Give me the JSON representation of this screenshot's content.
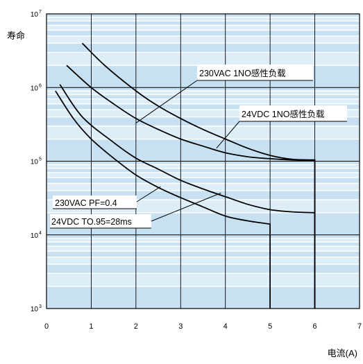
{
  "chart_data": {
    "type": "line",
    "ylabel": "寿命",
    "xlabel": "电流(A)",
    "x_ticks": [
      "0",
      "1",
      "2",
      "3",
      "4",
      "5",
      "6",
      "7"
    ],
    "y_ticks": [
      {
        "base": "10",
        "exp": "3"
      },
      {
        "base": "10",
        "exp": "4"
      },
      {
        "base": "10",
        "exp": "5"
      },
      {
        "base": "10",
        "exp": "6"
      },
      {
        "base": "10",
        "exp": "7"
      }
    ],
    "xlim": [
      0,
      7
    ],
    "ylim": [
      1000,
      10000000
    ],
    "y_scale": "log",
    "grid": true,
    "colors": {
      "background": "#ddeef8",
      "stripe": "#c7e1f2",
      "grid": "#ffffff",
      "line": "#000000"
    },
    "series": [
      {
        "name": "230VAC 1NO感性负载",
        "points": [
          [
            0.8,
            4000000
          ],
          [
            1.3,
            2000000
          ],
          [
            2.0,
            900000
          ],
          [
            2.5,
            560000
          ],
          [
            3.0,
            380000
          ],
          [
            3.5,
            270000
          ],
          [
            4.0,
            200000
          ],
          [
            4.5,
            150000
          ],
          [
            5.0,
            120000
          ],
          [
            5.5,
            106000
          ],
          [
            6.0,
            104000
          ]
        ],
        "cutoff": {
          "x": 6.0,
          "y": 1000
        }
      },
      {
        "name": "24VDC 1NO感性负载",
        "points": [
          [
            0.45,
            2000000
          ],
          [
            1.0,
            1000000
          ],
          [
            1.5,
            600000
          ],
          [
            2.0,
            380000
          ],
          [
            2.5,
            270000
          ],
          [
            3.0,
            200000
          ],
          [
            3.5,
            160000
          ],
          [
            4.0,
            130000
          ],
          [
            4.5,
            115000
          ],
          [
            5.0,
            108000
          ],
          [
            5.5,
            104000
          ],
          [
            6.0,
            102000
          ]
        ],
        "cutoff": {
          "x": 6.0,
          "y": 1000
        }
      },
      {
        "name": "230VAC PF=0.4",
        "points": [
          [
            0.3,
            1100000
          ],
          [
            0.8,
            400000
          ],
          [
            1.5,
            180000
          ],
          [
            2.0,
            110000
          ],
          [
            2.5,
            78000
          ],
          [
            3.0,
            55000
          ],
          [
            3.5,
            42000
          ],
          [
            4.0,
            33000
          ],
          [
            4.5,
            26000
          ],
          [
            5.0,
            22000
          ],
          [
            5.5,
            20500
          ],
          [
            6.0,
            20000
          ]
        ],
        "cutoff": {
          "x": 6.0,
          "y": 1000
        }
      },
      {
        "name": "24VDC TO.95=28ms",
        "points": [
          [
            0.2,
            900000
          ],
          [
            0.6,
            380000
          ],
          [
            1.0,
            200000
          ],
          [
            1.5,
            110000
          ],
          [
            2.0,
            65000
          ],
          [
            2.5,
            44000
          ],
          [
            3.0,
            32000
          ],
          [
            3.5,
            24000
          ],
          [
            4.0,
            18000
          ],
          [
            4.5,
            15500
          ],
          [
            5.0,
            14000
          ]
        ],
        "cutoff": {
          "x": 5.0,
          "y": 1000
        }
      }
    ],
    "annotations": [
      {
        "text": "230VAC 1NO感性负载",
        "target": [
          2.0,
          330000
        ]
      },
      {
        "text": "24VDC 1NO感性负载",
        "target": [
          3.8,
          150000
        ]
      },
      {
        "text": "230VAC PF=0.4",
        "target": [
          2.55,
          45000
        ]
      },
      {
        "text": "24VDC TO.95=28ms",
        "target": [
          3.9,
          37000
        ]
      }
    ]
  }
}
